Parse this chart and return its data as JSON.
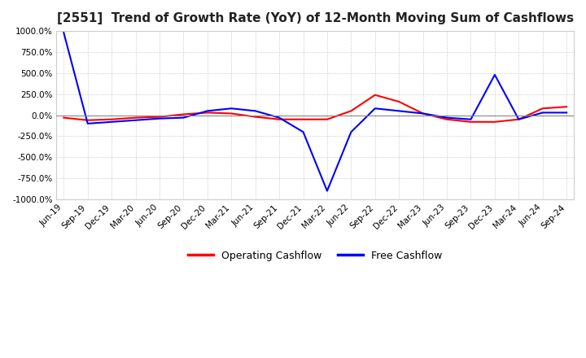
{
  "title": "[2551]  Trend of Growth Rate (YoY) of 12-Month Moving Sum of Cashflows",
  "title_fontsize": 11,
  "ylim": [
    -1000,
    1000
  ],
  "yticks": [
    -1000,
    -750,
    -500,
    -250,
    0,
    250,
    500,
    750,
    1000
  ],
  "background_color": "#ffffff",
  "plot_bg_color": "#ffffff",
  "grid_color": "#aaaaaa",
  "legend_labels": [
    "Operating Cashflow",
    "Free Cashflow"
  ],
  "legend_colors": [
    "#ff0000",
    "#0000ff"
  ],
  "x_labels": [
    "Jun-19",
    "Sep-19",
    "Dec-19",
    "Mar-20",
    "Jun-20",
    "Sep-20",
    "Dec-20",
    "Mar-21",
    "Jun-21",
    "Sep-21",
    "Dec-21",
    "Mar-22",
    "Jun-22",
    "Sep-22",
    "Dec-22",
    "Mar-23",
    "Jun-23",
    "Sep-23",
    "Dec-23",
    "Mar-24",
    "Jun-24",
    "Sep-24"
  ],
  "operating_cashflow": [
    -30,
    -60,
    -50,
    -30,
    -20,
    10,
    30,
    20,
    -20,
    -50,
    -50,
    -50,
    50,
    240,
    160,
    20,
    -50,
    -80,
    -80,
    -50,
    80,
    100
  ],
  "free_cashflow": [
    980,
    -100,
    -80,
    -60,
    -40,
    -30,
    50,
    80,
    50,
    -30,
    -200,
    -900,
    -200,
    80,
    50,
    20,
    -30,
    -50,
    480,
    -50,
    30,
    30
  ]
}
